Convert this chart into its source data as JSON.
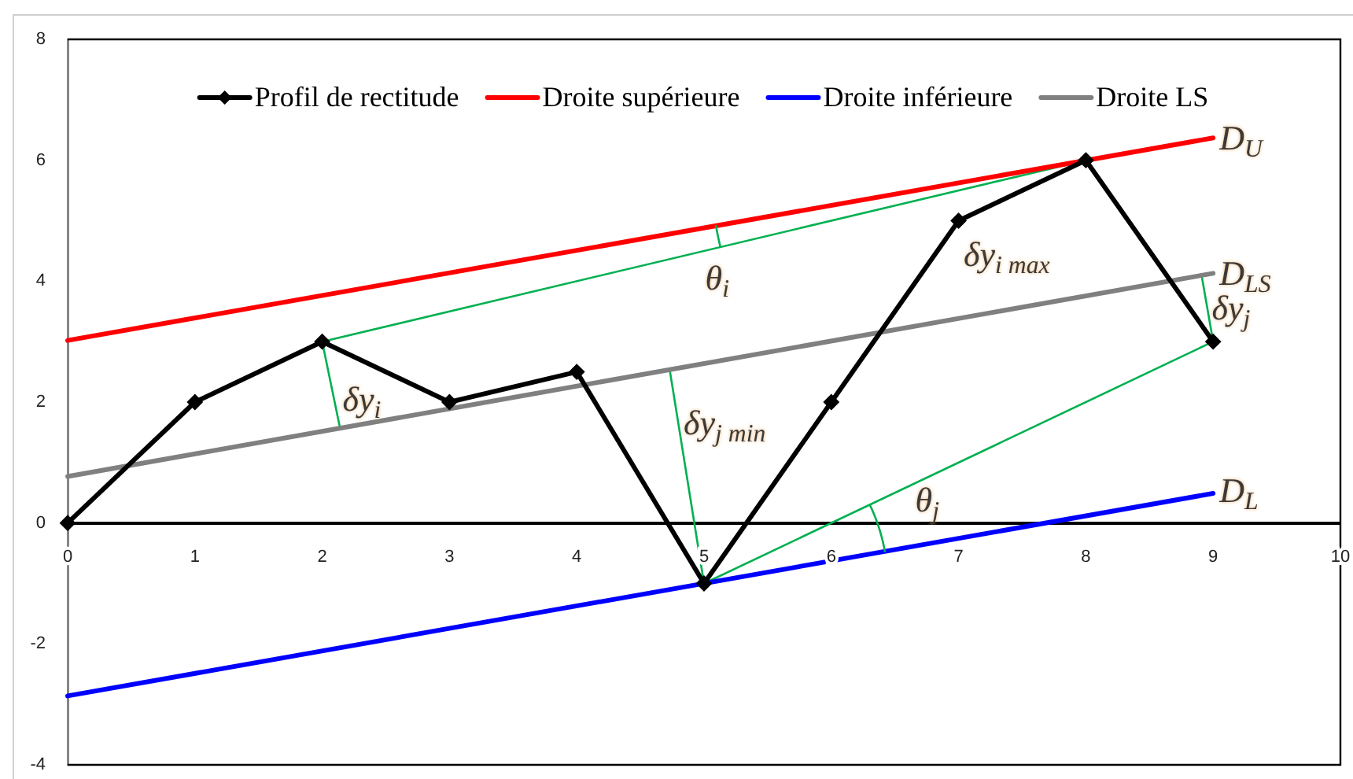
{
  "chart_data": {
    "type": "line",
    "xlim": [
      0,
      10
    ],
    "xticks": [
      0,
      1,
      2,
      3,
      4,
      5,
      6,
      7,
      8,
      9,
      10
    ],
    "ylim": [
      -4,
      8
    ],
    "yticks": [
      -4,
      -2,
      0,
      2,
      4,
      6,
      8
    ],
    "legend": "top",
    "series": [
      {
        "name": "Profil de rectitude",
        "color": "#000000",
        "marker": "diamond",
        "x": [
          0,
          1,
          2,
          3,
          4,
          5,
          6,
          7,
          8,
          9
        ],
        "values": [
          0,
          2,
          3,
          2,
          2.5,
          -1,
          2,
          5,
          6,
          3
        ]
      },
      {
        "name": "Droite supérieure",
        "color": "#ff0000",
        "x": [
          0,
          9
        ],
        "values": [
          3.02,
          6.37
        ]
      },
      {
        "name": "Droite inférieure",
        "color": "#0000ff",
        "x": [
          0,
          9
        ],
        "values": [
          -2.86,
          0.49
        ]
      },
      {
        "name": "Droite LS",
        "color": "#808080",
        "x": [
          0,
          9
        ],
        "values": [
          0.77,
          4.13
        ]
      },
      {
        "color": "#00b050",
        "x": [
          2,
          8
        ],
        "values": [
          3,
          6
        ]
      },
      {
        "color": "#00b050",
        "x": [
          5,
          9
        ],
        "values": [
          -1,
          3
        ]
      },
      {
        "color": "#00b050",
        "x": [
          2,
          2.14
        ],
        "values": [
          3,
          1.57
        ]
      },
      {
        "color": "#00b050",
        "x": [
          5,
          4.73
        ],
        "values": [
          -1,
          2.54
        ]
      },
      {
        "color": "#00b050",
        "x": [
          9,
          8.91
        ],
        "values": [
          3,
          4.09
        ]
      }
    ],
    "annotations": [
      {
        "text": "D$_{U}$",
        "x": 9.05,
        "y": 6.37
      },
      {
        "text": "D$_{LS}$",
        "x": 9.05,
        "y": 4.13
      },
      {
        "text": "D$_{L}$",
        "x": 9.05,
        "y": 0.52
      },
      "θ$_{i}$",
      "δy$_{i max}$",
      {
        "text": "δy$_{j}$",
        "x": 8.99,
        "y": 3.55
      },
      {
        "text": "δy$_{i}$",
        "x": 2.16,
        "y": 2.04
      },
      {
        "text": "δy$_{j min}$",
        "x": 4.84,
        "y": 1.64
      },
      "θ$_{j}$"
    ]
  }
}
